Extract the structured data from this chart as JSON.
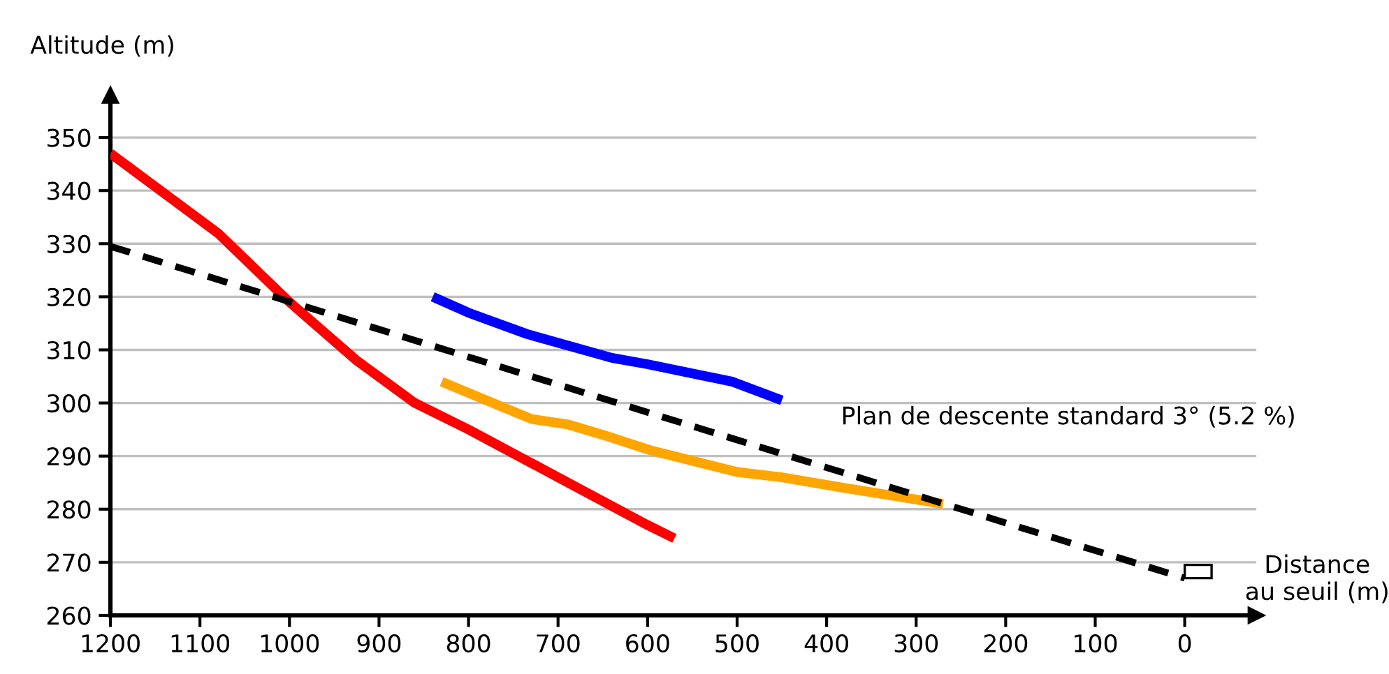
{
  "chart_data": {
    "type": "line",
    "xlabel": "Distance\nau seuil (m)",
    "ylabel": "Altitude (m)",
    "series": [
      {
        "color": "#ff0000",
        "x": [
          1200,
          1080,
          1000,
          925,
          860,
          800,
          700,
          600,
          570
        ],
        "values": [
          347,
          332,
          319,
          308,
          300,
          295,
          286,
          277,
          274.5
        ]
      },
      {
        "color": "#0000ff",
        "x": [
          840,
          800,
          735,
          640,
          600,
          505,
          450
        ],
        "values": [
          320,
          317,
          313,
          308.5,
          307.3,
          304,
          300.5
        ]
      },
      {
        "color": "#ffa500",
        "x": [
          830,
          730,
          690,
          650,
          595,
          500,
          450,
          380,
          270
        ],
        "values": [
          304,
          297,
          296,
          294,
          291,
          287,
          286,
          284,
          281
        ]
      },
      {
        "name": "Plan de descente standard 3° (5.2 %)",
        "color": "#000000",
        "line_style": "dashed",
        "x": [
          1200,
          0
        ],
        "values": [
          329.5,
          267
        ]
      }
    ],
    "xlim": [
      1200,
      -80
    ],
    "ylim": [
      260,
      358
    ],
    "xticks": [
      1200,
      1100,
      1000,
      900,
      800,
      700,
      600,
      500,
      400,
      300,
      200,
      100,
      0
    ],
    "yticks": [
      260,
      270,
      280,
      290,
      300,
      310,
      320,
      330,
      340,
      350
    ],
    "grid": "y",
    "legend": false
  }
}
